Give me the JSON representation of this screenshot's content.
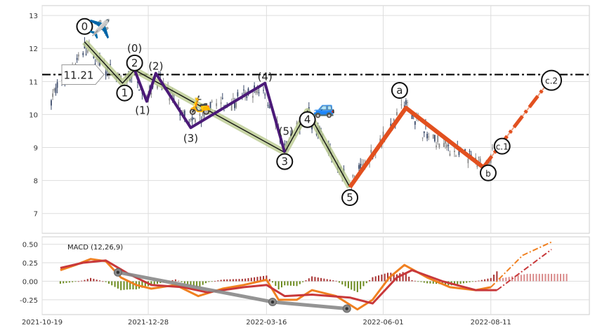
{
  "chart_data": [
    {
      "panel": "price",
      "type": "candlestick",
      "x_range": [
        "2021-10-19",
        "2022-10-15"
      ],
      "ylim": [
        6.4,
        13.3
      ],
      "yticks": [
        "7",
        "8",
        "9",
        "10",
        "11",
        "12",
        "13"
      ],
      "grid": true,
      "horizontal_line": {
        "value": 11.21,
        "label": "11.21",
        "style": "dash-dot",
        "color": "#000000"
      },
      "wave_points": [
        {
          "label": "0",
          "date": "2021-11-16",
          "value": 12.2,
          "circled": true
        },
        {
          "label": "1",
          "date": "2021-12-11",
          "value": 10.95,
          "circled": true
        },
        {
          "label": "2",
          "date": "2021-12-19",
          "value": 11.35,
          "circled": true
        },
        {
          "label": "3",
          "date": "2022-03-28",
          "value": 8.85,
          "circled": true
        },
        {
          "label": "4",
          "date": "2022-04-12",
          "value": 10.1,
          "circled": true
        },
        {
          "label": "5",
          "date": "2022-05-10",
          "value": 7.8,
          "circled": true
        },
        {
          "label": "a",
          "date": "2022-06-16",
          "value": 10.2,
          "circled": true
        },
        {
          "label": "b",
          "date": "2022-08-06",
          "value": 8.4,
          "circled": true
        },
        {
          "label": "c.1",
          "date": "2022-08-11",
          "value": 8.7,
          "circled": true
        },
        {
          "label": "c.2",
          "date": "2022-09-20",
          "value": 11.1,
          "circled": true
        }
      ],
      "subwave_points": [
        {
          "label": "(0)",
          "date": "2021-12-19",
          "value": 11.35
        },
        {
          "label": "(1)",
          "date": "2021-12-27",
          "value": 10.4
        },
        {
          "label": "(2)",
          "date": "2022-01-02",
          "value": 11.25
        },
        {
          "label": "(3)",
          "date": "2022-01-25",
          "value": 9.6
        },
        {
          "label": "(4)",
          "date": "2022-03-15",
          "value": 10.95
        },
        {
          "label": "(5)",
          "date": "2022-03-28",
          "value": 8.85
        }
      ],
      "colors": {
        "main_wave": "#111111",
        "main_wave_band": "#b9c98f",
        "sub_wave": "#4b1a78",
        "correction": "#e2501f",
        "projection": "#e2501f",
        "up_candle": "#888888",
        "down_candle": "#3a4a6a",
        "hline": "#000000"
      },
      "icons": [
        "airplane-icon",
        "scooter-icon",
        "car-icon"
      ],
      "ohlc_source": "synthetic-shape-only"
    },
    {
      "panel": "macd",
      "type": "line+bar",
      "label": "MACD (12,26,9)",
      "ylim": [
        -0.45,
        0.6
      ],
      "yticks": [
        "-0.25",
        "0.00",
        "0.25",
        "0.50"
      ],
      "grid": true,
      "colors": {
        "macd_line": "#f08020",
        "signal_line": "#c8383a",
        "hist_pos": "#a83232",
        "hist_neg": "#6b8a1e",
        "hist_proj": "#d98a8a",
        "trend": "#888888"
      },
      "macd_points": [
        {
          "date": "2021-10-31",
          "value": 0.15
        },
        {
          "date": "2021-11-10",
          "value": 0.22
        },
        {
          "date": "2021-11-20",
          "value": 0.3
        },
        {
          "date": "2021-11-30",
          "value": 0.27
        },
        {
          "date": "2021-12-10",
          "value": 0.05
        },
        {
          "date": "2021-12-20",
          "value": -0.05
        },
        {
          "date": "2021-12-30",
          "value": -0.1
        },
        {
          "date": "2022-01-15",
          "value": -0.05
        },
        {
          "date": "2022-01-30",
          "value": -0.2
        },
        {
          "date": "2022-02-15",
          "value": -0.1
        },
        {
          "date": "2022-03-01",
          "value": -0.05
        },
        {
          "date": "2022-03-16",
          "value": 0.02
        },
        {
          "date": "2022-03-24",
          "value": -0.25
        },
        {
          "date": "2022-04-05",
          "value": -0.25
        },
        {
          "date": "2022-04-15",
          "value": -0.12
        },
        {
          "date": "2022-05-01",
          "value": -0.2
        },
        {
          "date": "2022-05-15",
          "value": -0.38
        },
        {
          "date": "2022-05-25",
          "value": -0.25
        },
        {
          "date": "2022-06-05",
          "value": 0.05
        },
        {
          "date": "2022-06-15",
          "value": 0.22
        },
        {
          "date": "2022-06-30",
          "value": 0.05
        },
        {
          "date": "2022-07-15",
          "value": -0.08
        },
        {
          "date": "2022-08-01",
          "value": -0.12
        },
        {
          "date": "2022-08-11",
          "value": -0.08
        },
        {
          "date": "2022-09-01",
          "value": 0.35
        },
        {
          "date": "2022-09-20",
          "value": 0.53
        }
      ],
      "signal_points": [
        {
          "date": "2021-10-31",
          "value": 0.18
        },
        {
          "date": "2021-11-15",
          "value": 0.25
        },
        {
          "date": "2021-11-30",
          "value": 0.28
        },
        {
          "date": "2021-12-15",
          "value": 0.1
        },
        {
          "date": "2021-12-30",
          "value": -0.05
        },
        {
          "date": "2022-01-20",
          "value": -0.08
        },
        {
          "date": "2022-02-05",
          "value": -0.15
        },
        {
          "date": "2022-03-01",
          "value": -0.08
        },
        {
          "date": "2022-03-16",
          "value": -0.05
        },
        {
          "date": "2022-03-28",
          "value": -0.2
        },
        {
          "date": "2022-04-15",
          "value": -0.18
        },
        {
          "date": "2022-05-10",
          "value": -0.22
        },
        {
          "date": "2022-05-25",
          "value": -0.3
        },
        {
          "date": "2022-06-10",
          "value": 0.05
        },
        {
          "date": "2022-06-20",
          "value": 0.15
        },
        {
          "date": "2022-07-10",
          "value": 0.0
        },
        {
          "date": "2022-08-01",
          "value": -0.12
        },
        {
          "date": "2022-08-15",
          "value": -0.12
        },
        {
          "date": "2022-09-05",
          "value": 0.2
        },
        {
          "date": "2022-09-20",
          "value": 0.43
        }
      ],
      "trend_points": [
        {
          "date": "2021-12-08",
          "value": 0.12
        },
        {
          "date": "2022-03-20",
          "value": -0.28
        },
        {
          "date": "2022-05-08",
          "value": -0.37
        }
      ]
    }
  ],
  "xticks": [
    "2021-10-19",
    "2021-12-28",
    "2022-03-16",
    "2022-06-01",
    "2022-08-11"
  ]
}
